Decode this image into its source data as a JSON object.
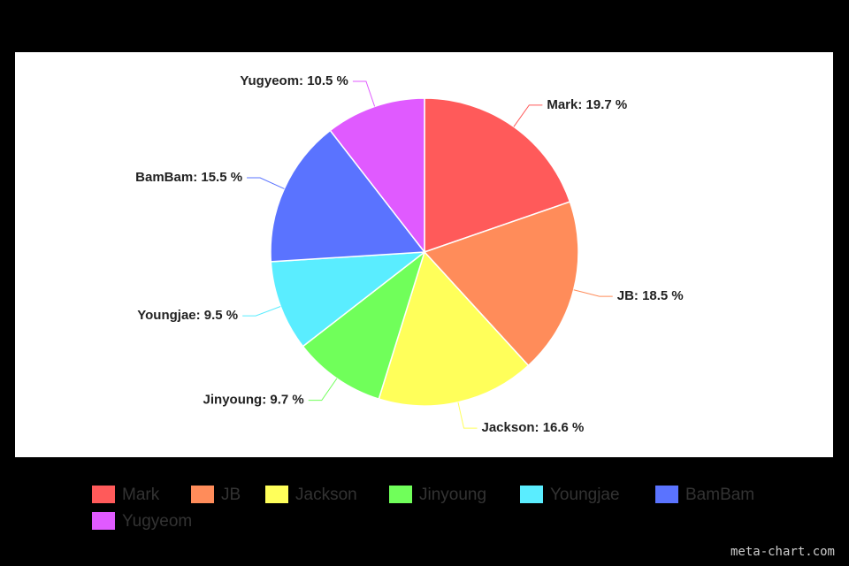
{
  "chart_data": {
    "type": "pie",
    "categories": [
      "Mark",
      "JB",
      "Jackson",
      "Jinyoung",
      "Youngjae",
      "BamBam",
      "Yugyeom"
    ],
    "values": [
      19.7,
      18.5,
      16.6,
      9.7,
      9.5,
      15.5,
      10.5
    ],
    "value_labels": [
      "Mark: 19.7 %",
      "JB: 18.5 %",
      "Jackson: 16.6 %",
      "Jinyoung: 9.7 %",
      "Youngjae: 9.5 %",
      "BamBam: 15.5 %",
      "Yugyeom: 10.5 %"
    ],
    "colors": [
      "#ff5a5a",
      "#ff8c5a",
      "#ffff5a",
      "#70ff5a",
      "#5aedff",
      "#5a73ff",
      "#e05aff"
    ],
    "legend": "bottom",
    "watermark": "meta-chart.com"
  }
}
